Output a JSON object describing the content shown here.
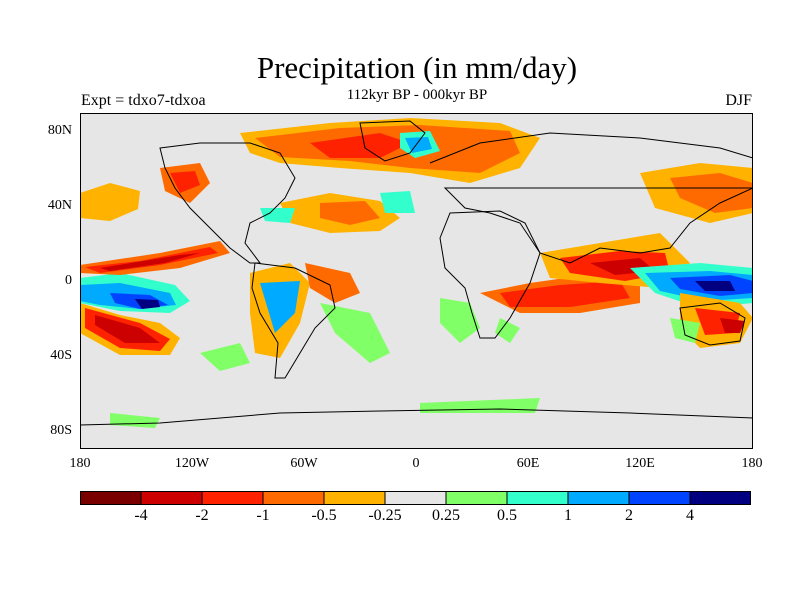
{
  "title": "Precipitation (in mm/day)",
  "subtitle": "112kyr BP - 000kyr BP",
  "left_label": "Expt = tdxo7-tdxoa",
  "right_label": "DJF",
  "y_ticks": [
    "80N",
    "40N",
    "0",
    "40S",
    "80S"
  ],
  "x_ticks": [
    "180",
    "120W",
    "60W",
    "0",
    "60E",
    "120E",
    "180"
  ],
  "colorbar": {
    "colors": [
      "#7a0000",
      "#cc0000",
      "#ff2200",
      "#ff6a00",
      "#ffb300",
      "#e6e6e6",
      "#80ff66",
      "#33ffcc",
      "#00aaff",
      "#0044ff",
      "#000080"
    ],
    "labels": [
      "-4",
      "-2",
      "-1",
      "-0.5",
      "-0.25",
      "0.25",
      "0.5",
      "1",
      "2",
      "4"
    ]
  },
  "colors": {
    "missing": "#e6e6e6",
    "dark_red": "#cc0000",
    "red": "#ff2200",
    "orange": "#ff6a00",
    "light_orange": "#ffb300",
    "green": "#80ff66",
    "cyan": "#33ffcc",
    "light_blue": "#00aaff",
    "blue": "#0044ff",
    "navy": "#000080"
  }
}
